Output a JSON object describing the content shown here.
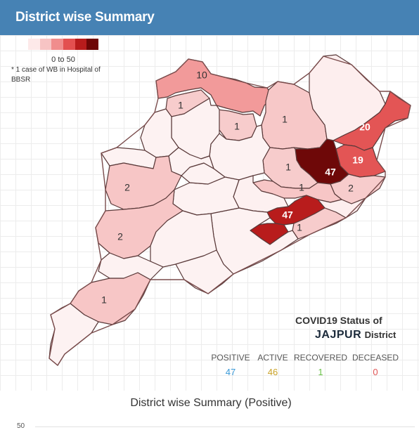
{
  "header": {
    "title": "District wise Summary"
  },
  "legend": {
    "colors": [
      "#fde9e9",
      "#f7c4c4",
      "#f08d8d",
      "#e35050",
      "#b81c1c",
      "#6e0606"
    ],
    "range_label": "0 to 50",
    "note": "* 1 case of WB in Hospital of BBSR"
  },
  "map": {
    "district_labels": [
      "10",
      "1",
      "1",
      "1",
      "20",
      "1",
      "47",
      "19",
      "2",
      "1",
      "2",
      "47",
      "1",
      "2",
      "1"
    ]
  },
  "status": {
    "title": "COVID19 Status of",
    "district": "JAJPUR",
    "district_suffix": "District",
    "positive_label": "POSITIVE",
    "positive_value": "47",
    "active_label": "ACTIVE",
    "active_value": "46",
    "recovered_label": "RECOVERED",
    "recovered_value": "1",
    "deceased_label": "DECEASED",
    "deceased_value": "0",
    "colors": {
      "positive": "#3a9ad9",
      "active": "#c9a227",
      "recovered": "#6cc24a",
      "deceased": "#e05555"
    }
  },
  "chart": {
    "title": "District wise Summary (Positive)",
    "first_tick": "50"
  }
}
